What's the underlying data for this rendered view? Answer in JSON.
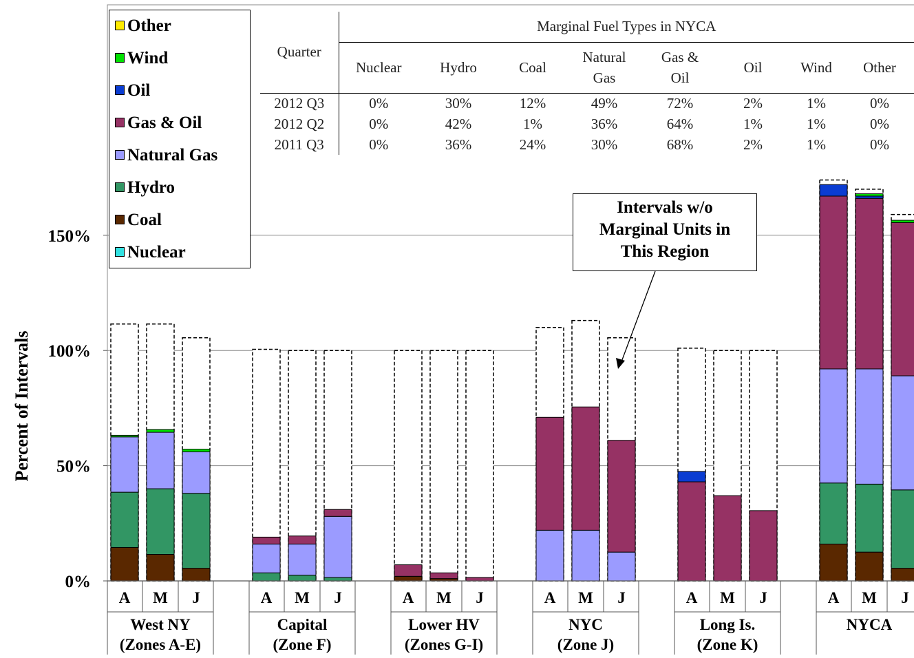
{
  "chart_data": {
    "type": "bar",
    "stacked": true,
    "ylabel": "Percent of Intervals",
    "yticks": [
      "0%",
      "50%",
      "100%",
      "150%"
    ],
    "ylim": [
      0,
      180
    ],
    "grid": true,
    "legend_position": "top-left",
    "legend": [
      "Other",
      "Wind",
      "Oil",
      "Gas & Oil",
      "Natural Gas",
      "Hydro",
      "Coal",
      "Nuclear"
    ],
    "colors": {
      "Other": "#FFEB00",
      "Wind": "#00E100",
      "Oil": "#0A3CD2",
      "Gas & Oil": "#963264",
      "Natural Gas": "#9B9BFF",
      "Hydro": "#329664",
      "Coal": "#5A2800",
      "Nuclear": "#32E1E1",
      "No Marginal Unit": "#FFFFFF"
    },
    "stack_order": [
      "Nuclear",
      "Coal",
      "Hydro",
      "Natural Gas",
      "Gas & Oil",
      "Oil",
      "Wind",
      "Other"
    ],
    "month_labels": [
      "A",
      "M",
      "J"
    ],
    "groups": [
      {
        "name": "West NY",
        "sub": "(Zones A-E)",
        "bars": [
          {
            "month": "A",
            "values": {
              "Nuclear": 0,
              "Coal": 14.5,
              "Hydro": 24,
              "Natural Gas": 24,
              "Gas & Oil": 0,
              "Oil": 0,
              "Wind": 0.7,
              "Other": 0
            },
            "total": 111.5
          },
          {
            "month": "M",
            "values": {
              "Nuclear": 0,
              "Coal": 11.5,
              "Hydro": 28.5,
              "Natural Gas": 24.5,
              "Gas & Oil": 0,
              "Oil": 0,
              "Wind": 1.2,
              "Other": 0
            },
            "total": 111.5
          },
          {
            "month": "J",
            "values": {
              "Nuclear": 0,
              "Coal": 5.5,
              "Hydro": 32.5,
              "Natural Gas": 18,
              "Gas & Oil": 0,
              "Oil": 0,
              "Wind": 1.2,
              "Other": 0
            },
            "total": 105.5
          }
        ]
      },
      {
        "name": "Capital",
        "sub": "(Zone F)",
        "bars": [
          {
            "month": "A",
            "values": {
              "Nuclear": 0,
              "Coal": 0,
              "Hydro": 3.5,
              "Natural Gas": 12.5,
              "Gas & Oil": 3,
              "Oil": 0,
              "Wind": 0,
              "Other": 0
            },
            "total": 100.5
          },
          {
            "month": "M",
            "values": {
              "Nuclear": 0,
              "Coal": 0,
              "Hydro": 2.5,
              "Natural Gas": 13.5,
              "Gas & Oil": 3.5,
              "Oil": 0,
              "Wind": 0,
              "Other": 0
            },
            "total": 100
          },
          {
            "month": "J",
            "values": {
              "Nuclear": 0,
              "Coal": 0,
              "Hydro": 1.5,
              "Natural Gas": 26.5,
              "Gas & Oil": 3,
              "Oil": 0,
              "Wind": 0,
              "Other": 0
            },
            "total": 100
          }
        ]
      },
      {
        "name": "Lower HV",
        "sub": "(Zones G-I)",
        "bars": [
          {
            "month": "A",
            "values": {
              "Nuclear": 0,
              "Coal": 2,
              "Hydro": 0,
              "Natural Gas": 0,
              "Gas & Oil": 5,
              "Oil": 0,
              "Wind": 0,
              "Other": 0
            },
            "total": 100
          },
          {
            "month": "M",
            "values": {
              "Nuclear": 0,
              "Coal": 1,
              "Hydro": 0,
              "Natural Gas": 0,
              "Gas & Oil": 2.5,
              "Oil": 0,
              "Wind": 0,
              "Other": 0
            },
            "total": 100
          },
          {
            "month": "J",
            "values": {
              "Nuclear": 0,
              "Coal": 0,
              "Hydro": 0,
              "Natural Gas": 0,
              "Gas & Oil": 1.5,
              "Oil": 0,
              "Wind": 0,
              "Other": 0
            },
            "total": 100
          }
        ]
      },
      {
        "name": "NYC",
        "sub": "(Zone J)",
        "bars": [
          {
            "month": "A",
            "values": {
              "Nuclear": 0,
              "Coal": 0,
              "Hydro": 0,
              "Natural Gas": 22,
              "Gas & Oil": 49,
              "Oil": 0,
              "Wind": 0,
              "Other": 0
            },
            "total": 110
          },
          {
            "month": "M",
            "values": {
              "Nuclear": 0,
              "Coal": 0,
              "Hydro": 0,
              "Natural Gas": 22,
              "Gas & Oil": 53.5,
              "Oil": 0,
              "Wind": 0,
              "Other": 0
            },
            "total": 113
          },
          {
            "month": "J",
            "values": {
              "Nuclear": 0,
              "Coal": 0,
              "Hydro": 0,
              "Natural Gas": 12.5,
              "Gas & Oil": 48.5,
              "Oil": 0,
              "Wind": 0,
              "Other": 0
            },
            "total": 105.5
          }
        ]
      },
      {
        "name": "Long Is.",
        "sub": "(Zone K)",
        "bars": [
          {
            "month": "A",
            "values": {
              "Nuclear": 0,
              "Coal": 0,
              "Hydro": 0,
              "Natural Gas": 0,
              "Gas & Oil": 43,
              "Oil": 4.5,
              "Wind": 0,
              "Other": 0
            },
            "total": 101
          },
          {
            "month": "M",
            "values": {
              "Nuclear": 0,
              "Coal": 0,
              "Hydro": 0,
              "Natural Gas": 0,
              "Gas & Oil": 37,
              "Oil": 0,
              "Wind": 0,
              "Other": 0
            },
            "total": 100
          },
          {
            "month": "J",
            "values": {
              "Nuclear": 0,
              "Coal": 0,
              "Hydro": 0,
              "Natural Gas": 0,
              "Gas & Oil": 30.5,
              "Oil": 0,
              "Wind": 0,
              "Other": 0
            },
            "total": 100
          }
        ]
      },
      {
        "name": "NYCA",
        "sub": "",
        "bars": [
          {
            "month": "A",
            "values": {
              "Nuclear": 0,
              "Coal": 16,
              "Hydro": 26.5,
              "Natural Gas": 49.5,
              "Gas & Oil": 75,
              "Oil": 5,
              "Wind": 0,
              "Other": 0
            },
            "total": 174
          },
          {
            "month": "M",
            "values": {
              "Nuclear": 0,
              "Coal": 12.5,
              "Hydro": 29.5,
              "Natural Gas": 50,
              "Gas & Oil": 74,
              "Oil": 1,
              "Wind": 1,
              "Other": 0
            },
            "total": 170
          },
          {
            "month": "J",
            "values": {
              "Nuclear": 0,
              "Coal": 5.5,
              "Hydro": 34,
              "Natural Gas": 49.5,
              "Gas & Oil": 66.5,
              "Oil": 0,
              "Wind": 1,
              "Other": 0
            },
            "total": 159
          }
        ]
      }
    ],
    "callout": [
      "Intervals w/o",
      "Marginal Units in",
      "This Region"
    ],
    "table": {
      "title": "Marginal Fuel Types in NYCA",
      "row_header": "Quarter",
      "columns": [
        [
          "Nuclear"
        ],
        [
          "Hydro"
        ],
        [
          "Coal"
        ],
        [
          "Natural",
          "Gas"
        ],
        [
          "Gas &",
          "Oil"
        ],
        [
          "Oil"
        ],
        [
          "Wind"
        ],
        [
          "Other"
        ]
      ],
      "rows": [
        {
          "quarter": "2012 Q3",
          "values": [
            "0%",
            "30%",
            "12%",
            "49%",
            "72%",
            "2%",
            "1%",
            "0%"
          ]
        },
        {
          "quarter": "2012 Q2",
          "values": [
            "0%",
            "42%",
            "1%",
            "36%",
            "64%",
            "1%",
            "1%",
            "0%"
          ]
        },
        {
          "quarter": "2011 Q3",
          "values": [
            "0%",
            "36%",
            "24%",
            "30%",
            "68%",
            "2%",
            "1%",
            "0%"
          ]
        }
      ]
    }
  }
}
